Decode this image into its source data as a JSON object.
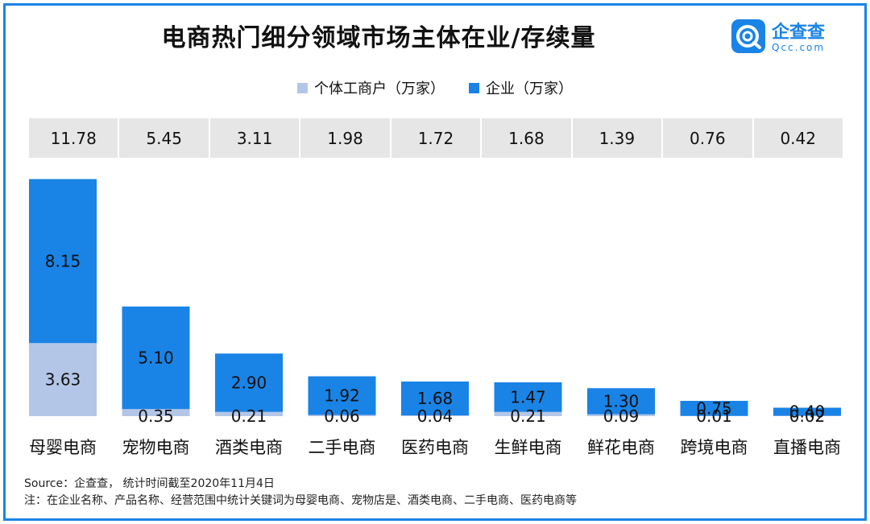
{
  "title": "电商热门细分领域市场主体在业/存续量",
  "logo": {
    "name": "企查查",
    "sub": "Qcc.com"
  },
  "legend": [
    {
      "label": "个体工商户（万家）",
      "color": "#b4c6e7"
    },
    {
      "label": "企业（万家）",
      "color": "#1a83e6"
    }
  ],
  "colors": {
    "individual": "#b4c6e7",
    "enterprise": "#1a83e6",
    "frame": "#1a83e6"
  },
  "chart_data": {
    "type": "bar",
    "stacked": true,
    "categories": [
      "母婴电商",
      "宠物电商",
      "酒类电商",
      "二手电商",
      "医药电商",
      "生鲜电商",
      "鲜花电商",
      "跨境电商",
      "直播电商"
    ],
    "totals": [
      "11.78",
      "5.45",
      "3.11",
      "1.98",
      "1.72",
      "1.68",
      "1.39",
      "0.76",
      "0.42"
    ],
    "series": [
      {
        "name": "个体工商户（万家）",
        "values": [
          3.63,
          0.35,
          0.21,
          0.06,
          0.04,
          0.21,
          0.09,
          0.01,
          0.02
        ]
      },
      {
        "name": "企业（万家）",
        "values": [
          8.15,
          5.1,
          2.9,
          1.92,
          1.68,
          1.47,
          1.3,
          0.75,
          0.4
        ]
      }
    ],
    "grid": false
  },
  "source": "Source：企查查， 统计时间截至2020年11月4日",
  "note": "注：在企业名称、产品名称、经营范围中统计关键词为母婴电商、宠物店是、酒类电商、二手电商、医药电商等"
}
